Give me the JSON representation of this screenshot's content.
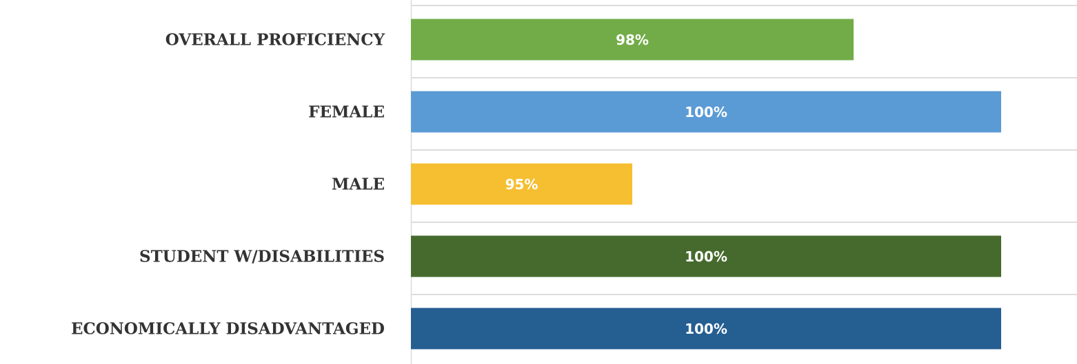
{
  "chart_data": {
    "type": "bar",
    "orientation": "horizontal",
    "categories": [
      "OVERALL PROFICIENCY",
      "FEMALE",
      "MALE",
      "STUDENT W/DISABILITIES",
      "ECONOMICALLY DISADVANTAGED"
    ],
    "values": [
      98,
      100,
      95,
      100,
      100
    ],
    "value_labels": [
      "98%",
      "100%",
      "95%",
      "100%",
      "100%"
    ],
    "colors": [
      "#72ac48",
      "#5b9bd5",
      "#f5bf31",
      "#466a2d",
      "#255e91"
    ],
    "xlim": [
      92,
      101
    ]
  }
}
